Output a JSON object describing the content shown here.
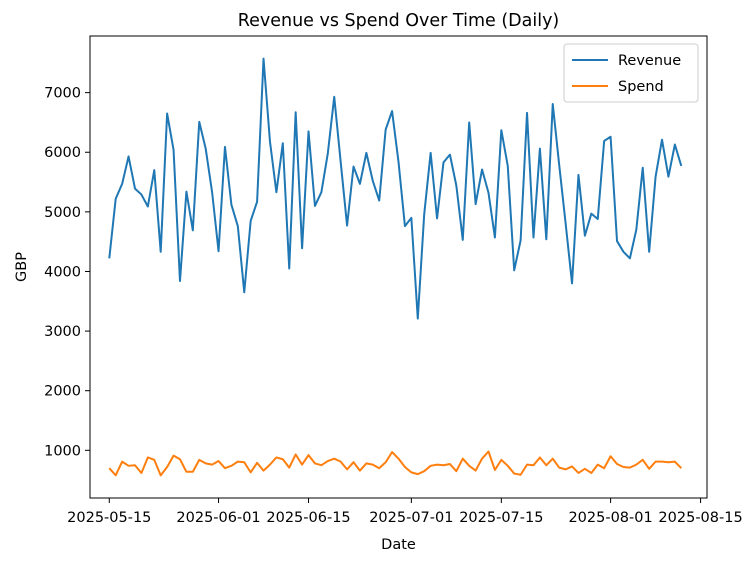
{
  "chart_data": {
    "type": "line",
    "title": "Revenue vs Spend Over Time (Daily)",
    "xlabel": "Date",
    "ylabel": "GBP",
    "x_start": "2025-05-15",
    "x_tick_labels": [
      "2025-05-15",
      "2025-06-01",
      "2025-06-15",
      "2025-07-01",
      "2025-07-15",
      "2025-08-01",
      "2025-08-15"
    ],
    "y_ticks": [
      1000,
      2000,
      3000,
      4000,
      5000,
      6000,
      7000
    ],
    "xlim": [
      "2025-05-12",
      "2025-08-16"
    ],
    "ylim": [
      200,
      7950
    ],
    "grid": false,
    "legend_position": "upper right",
    "series": [
      {
        "name": "Revenue",
        "color": "#1f77b4",
        "values": [
          4220,
          5220,
          5470,
          5930,
          5390,
          5290,
          5090,
          5700,
          4330,
          6650,
          6040,
          3840,
          5340,
          4690,
          6510,
          6060,
          5330,
          4340,
          6090,
          5120,
          4760,
          3650,
          4850,
          5170,
          7570,
          6180,
          5330,
          6150,
          4050,
          6670,
          4390,
          6350,
          5100,
          5330,
          5980,
          6930,
          5840,
          4770,
          5760,
          5470,
          5990,
          5520,
          5190,
          6380,
          6690,
          5840,
          4760,
          4900,
          3210,
          4960,
          5990,
          4890,
          5830,
          5960,
          5440,
          4530,
          6500,
          5130,
          5710,
          5320,
          4570,
          6370,
          5770,
          4020,
          4520,
          6660,
          4570,
          6060,
          4540,
          6810,
          5790,
          4810,
          3800,
          5620,
          4600,
          4970,
          4880,
          6190,
          6260,
          4510,
          4330,
          4220,
          4700,
          5740,
          4330,
          5590,
          6210,
          5590,
          6130,
          5770
        ]
      },
      {
        "name": "Spend",
        "color": "#ff7f0e",
        "values": [
          700,
          580,
          810,
          740,
          750,
          620,
          880,
          840,
          580,
          720,
          910,
          850,
          640,
          640,
          840,
          780,
          760,
          820,
          700,
          740,
          810,
          800,
          630,
          790,
          660,
          760,
          880,
          850,
          710,
          930,
          760,
          920,
          780,
          750,
          820,
          860,
          810,
          680,
          800,
          660,
          780,
          760,
          700,
          800,
          970,
          860,
          720,
          630,
          600,
          650,
          740,
          760,
          750,
          770,
          650,
          860,
          740,
          660,
          860,
          980,
          670,
          840,
          740,
          610,
          590,
          760,
          750,
          880,
          750,
          860,
          710,
          680,
          730,
          620,
          690,
          620,
          760,
          700,
          900,
          770,
          720,
          710,
          760,
          840,
          690,
          810,
          810,
          800,
          810,
          700
        ]
      }
    ]
  }
}
